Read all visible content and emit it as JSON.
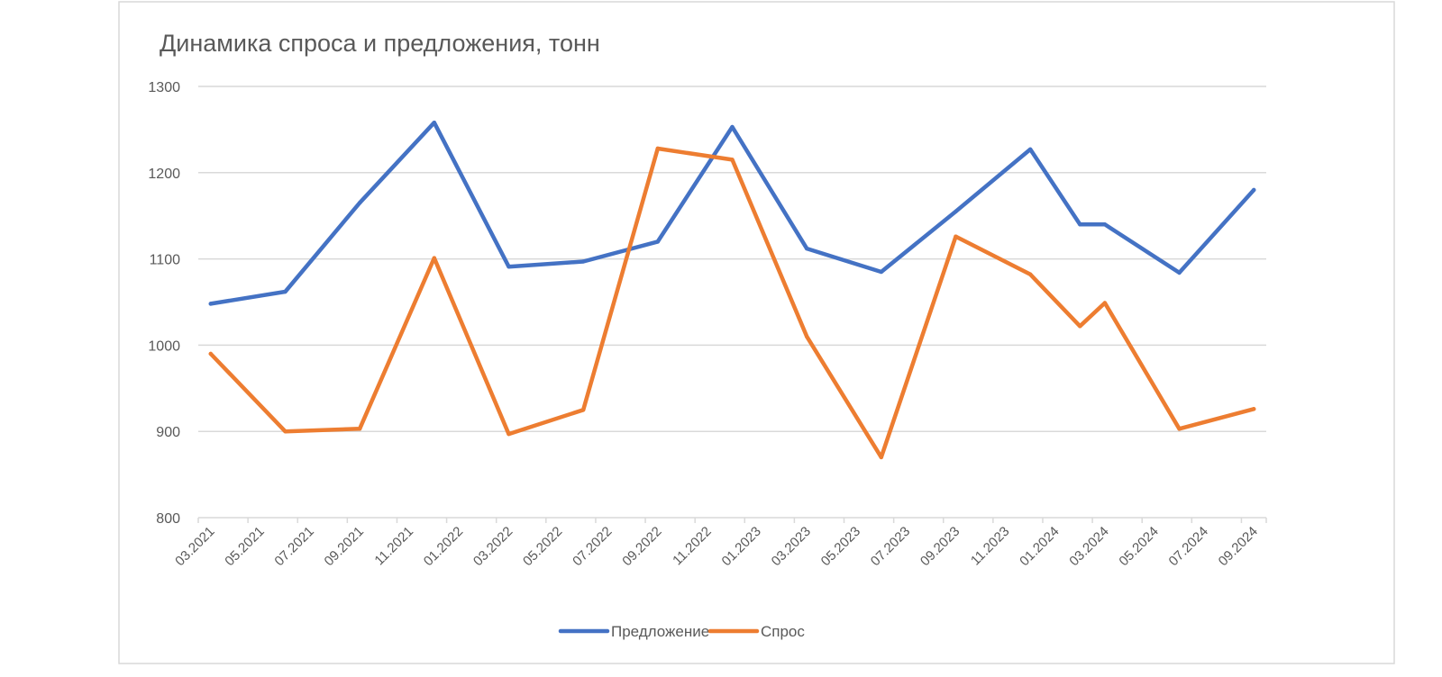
{
  "chart_data": {
    "type": "line",
    "title": "Динамика спроса и предложения, тонн",
    "xlabel": "",
    "ylabel": "",
    "ylim": [
      800,
      1300
    ],
    "yticks": [
      800,
      900,
      1000,
      1100,
      1200,
      1300
    ],
    "xlim": [
      "03.2021",
      "09.2024"
    ],
    "xtick_labels": [
      "03.2021",
      "05.2021",
      "07.2021",
      "09.2021",
      "11.2021",
      "01.2022",
      "03.2022",
      "05.2022",
      "07.2022",
      "09.2022",
      "11.2022",
      "01.2023",
      "03.2023",
      "05.2023",
      "07.2023",
      "09.2023",
      "11.2023",
      "01.2024",
      "03.2024",
      "05.2024",
      "07.2024",
      "09.2024"
    ],
    "x": [
      "03.2021",
      "06.2021",
      "09.2021",
      "12.2021",
      "03.2022",
      "06.2022",
      "09.2022",
      "12.2022",
      "03.2023",
      "06.2023",
      "09.2023",
      "12.2023",
      "02.2024",
      "03.2024",
      "06.2024",
      "09.2024"
    ],
    "grid": "horizontal",
    "legend_position": "bottom",
    "series": [
      {
        "name": "Предложение",
        "color": "#4472C4",
        "values": [
          1048,
          1062,
          1165,
          1258,
          1091,
          1097,
          1120,
          1253,
          1112,
          1085,
          1155,
          1227,
          1140,
          1140,
          1084,
          1180
        ]
      },
      {
        "name": "Спрос",
        "color": "#ED7D31",
        "values": [
          990,
          900,
          903,
          1101,
          897,
          925,
          1228,
          1215,
          1010,
          870,
          1126,
          1082,
          1022,
          1049,
          903,
          926
        ]
      }
    ]
  }
}
